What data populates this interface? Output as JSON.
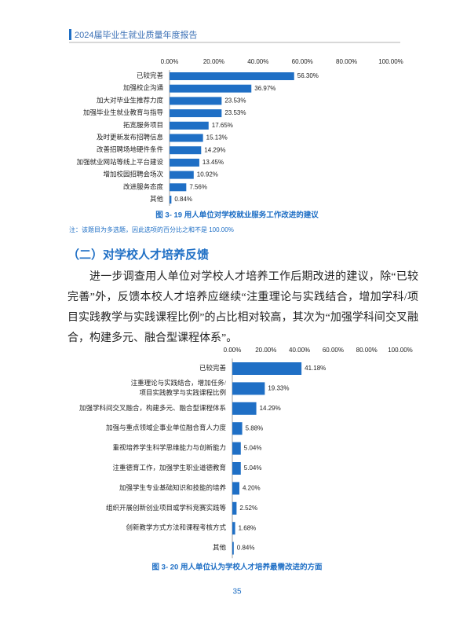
{
  "header": {
    "title": "2024届毕业生就业质量年度报告"
  },
  "note": "注：该题目为多选题，因此选项的百分比之和不是 100.00%",
  "section": {
    "heading": "（二）对学校人才培养反馈",
    "paragraph": "进一步调查用人单位对学校人才培养工作后期改进的建议，除“已较完善”外，反馈本校人才培养应继续“注重理论与实践结合，增加学科/项目实践教学与实践课程比例”的占比相对较高，其次为“加强学科间交叉融合，构建多元、融合型课程体系”。"
  },
  "page_number": "35",
  "chart_data": [
    {
      "type": "hbar",
      "title": "图 3- 19 用人单位对学校就业服务工作改进的建议",
      "color": "#1f6fc5",
      "categories": [
        "已较完善",
        "加强校企沟通",
        "加大对毕业生推荐力度",
        "加强毕业生就业教育与指导",
        "拓宽服务项目",
        "及时更新发布招聘信息",
        "改善招聘场地硬件条件",
        "加强就业网站等线上平台建设",
        "增加校园招聘会场次",
        "改进服务态度",
        "其他"
      ],
      "values": [
        56.3,
        36.97,
        23.53,
        23.53,
        17.65,
        15.13,
        14.29,
        13.45,
        10.92,
        7.56,
        0.84
      ],
      "value_labels": [
        "56.30%",
        "36.97%",
        "23.53%",
        "23.53%",
        "17.65%",
        "15.13%",
        "14.29%",
        "13.45%",
        "10.92%",
        "7.56%",
        "0.84%"
      ],
      "xlim": [
        0,
        100
      ],
      "xticks": [
        {
          "value": 0,
          "label": "0.00%"
        },
        {
          "value": 20,
          "label": "20.00%"
        },
        {
          "value": 40,
          "label": "40.00%"
        },
        {
          "value": 60,
          "label": "60.00%"
        },
        {
          "value": 80,
          "label": "80.00%"
        },
        {
          "value": 100,
          "label": "100.00%"
        }
      ]
    },
    {
      "type": "hbar",
      "title": "图 3- 20 用人单位认为学校人才培养最需改进的方面",
      "color": "#1f6fc5",
      "categories": [
        "已较完善",
        "注重理论与实践结合，增加任务/\n项目实践教学与实践课程比例",
        "加强学科间交叉融合，构建多元、融合型课程体系",
        "加强与重点领域企事业单位融合育人力度",
        "重视培养学生科学思维能力与创新能力",
        "注重德育工作，加强学生职业道德教育",
        "加强学生专业基础知识和技能的培养",
        "组织开展创新创业项目或学科竞赛实践等",
        "创新教学方式方法和课程考核方式",
        "其他"
      ],
      "values": [
        41.18,
        19.33,
        14.29,
        5.88,
        5.04,
        5.04,
        4.2,
        2.52,
        1.68,
        0.84
      ],
      "value_labels": [
        "41.18%",
        "19.33%",
        "14.29%",
        "5.88%",
        "5.04%",
        "5.04%",
        "4.20%",
        "2.52%",
        "1.68%",
        "0.84%"
      ],
      "xlim": [
        0,
        100
      ],
      "xticks": [
        {
          "value": 0,
          "label": "0.00%"
        },
        {
          "value": 20,
          "label": "20.00%"
        },
        {
          "value": 40,
          "label": "40.00%"
        },
        {
          "value": 60,
          "label": "60.00%"
        },
        {
          "value": 80,
          "label": "80.00%"
        },
        {
          "value": 100,
          "label": "100.00%"
        }
      ]
    }
  ]
}
